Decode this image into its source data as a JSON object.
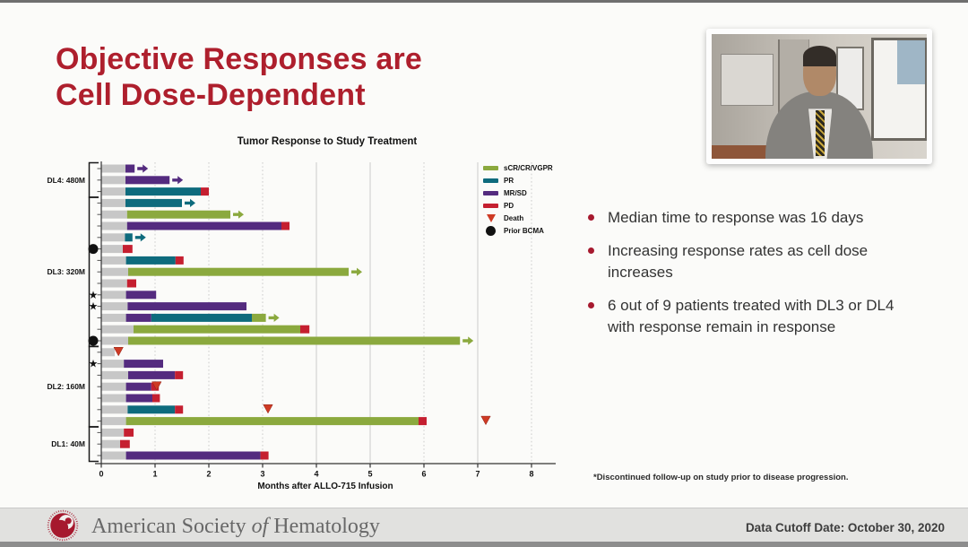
{
  "slide": {
    "title_line1": "Objective Responses are",
    "title_line2": "Cell Dose-Dependent",
    "bullets": [
      "Median time to response was 16 days",
      "Increasing response rates as cell dose increases",
      "6 out of 9 patients treated with DL3 or DL4 with response remain in response"
    ],
    "footnote": "*Discontinued follow-up on study prior to disease progression."
  },
  "footer": {
    "org_prefix": "American Society ",
    "org_italic": "of",
    "org_suffix": " Hematology",
    "data_cutoff": "Data Cutoff Date: October 30, 2020"
  },
  "colors": {
    "title_red": "#AE1F2D",
    "bullet_dot": "#A6192E"
  },
  "chart_data": {
    "type": "swimmer",
    "title": "Tumor Response to Study Treatment",
    "xlabel": "Months after ALLO-715 Infusion",
    "x_unit": "months",
    "xlim": [
      0,
      8
    ],
    "xticks": [
      0,
      1,
      2,
      3,
      4,
      5,
      6,
      7,
      8
    ],
    "series_colors": {
      "pre": "#C7C7C7",
      "scr": "#8BA93E",
      "pr": "#0E6B7D",
      "mrsd": "#542B7F",
      "pd": "#C51F30",
      "death": "#CE3A24",
      "marker": "#111111"
    },
    "legend": [
      {
        "key": "scr",
        "label": "sCR/CR/VGPR",
        "shape": "bar"
      },
      {
        "key": "pr",
        "label": "PR",
        "shape": "bar"
      },
      {
        "key": "mrsd",
        "label": "MR/SD",
        "shape": "bar"
      },
      {
        "key": "pd",
        "label": "PD",
        "shape": "bar"
      },
      {
        "key": "death",
        "label": "Death",
        "shape": "triangle"
      },
      {
        "key": "marker",
        "label": "Prior BCMA",
        "shape": "circle"
      }
    ],
    "groups": [
      {
        "label": "DL4: 480M",
        "rows": [
          {
            "segments": [
              [
                "pre",
                0,
                0.45
              ],
              [
                "mrsd",
                0.45,
                0.62
              ]
            ],
            "arrow": "mrsd"
          },
          {
            "segments": [
              [
                "pre",
                0,
                0.45
              ],
              [
                "mrsd",
                0.45,
                1.27
              ]
            ],
            "arrow": "mrsd"
          },
          {
            "segments": [
              [
                "pre",
                0,
                0.45
              ],
              [
                "pr",
                0.45,
                1.85
              ],
              [
                "pd",
                1.85,
                2.0
              ]
            ]
          }
        ]
      },
      {
        "label": "DL3: 320M",
        "rows": [
          {
            "segments": [
              [
                "pre",
                0,
                0.45
              ],
              [
                "pr",
                0.45,
                1.5
              ]
            ],
            "arrow": "pr"
          },
          {
            "segments": [
              [
                "pre",
                0,
                0.48
              ],
              [
                "scr",
                0.48,
                2.4
              ]
            ],
            "arrow": "scr"
          },
          {
            "segments": [
              [
                "pre",
                0,
                0.48
              ],
              [
                "mrsd",
                0.48,
                3.35
              ],
              [
                "pd",
                3.35,
                3.5
              ]
            ]
          },
          {
            "segments": [
              [
                "pre",
                0,
                0.44
              ],
              [
                "pr",
                0.44,
                0.58
              ]
            ],
            "arrow": "pr"
          },
          {
            "segments": [
              [
                "pre",
                0,
                0.4
              ],
              [
                "pd",
                0.4,
                0.58
              ]
            ],
            "marker": "circle"
          },
          {
            "segments": [
              [
                "pre",
                0,
                0.46
              ],
              [
                "pr",
                0.46,
                1.38
              ],
              [
                "pd",
                1.38,
                1.53
              ]
            ]
          },
          {
            "segments": [
              [
                "pre",
                0,
                0.5
              ],
              [
                "scr",
                0.5,
                4.6
              ]
            ],
            "arrow": "scr"
          },
          {
            "segments": [
              [
                "pre",
                0,
                0.48
              ],
              [
                "pd",
                0.48,
                0.65
              ]
            ]
          },
          {
            "segments": [
              [
                "pre",
                0,
                0.46
              ],
              [
                "mrsd",
                0.46,
                1.02
              ]
            ],
            "marker": "star"
          },
          {
            "segments": [
              [
                "pre",
                0,
                0.49
              ],
              [
                "mrsd",
                0.49,
                2.7
              ]
            ],
            "marker": "star"
          },
          {
            "segments": [
              [
                "pre",
                0,
                0.46
              ],
              [
                "mrsd",
                0.46,
                0.93
              ],
              [
                "pr",
                0.93,
                2.8
              ],
              [
                "scr",
                2.8,
                3.06
              ]
            ],
            "arrow": "scr"
          },
          {
            "segments": [
              [
                "pre",
                0,
                0.6
              ],
              [
                "scr",
                0.6,
                3.7
              ],
              [
                "pd",
                3.7,
                3.87
              ]
            ]
          },
          {
            "segments": [
              [
                "pre",
                0,
                0.5
              ],
              [
                "scr",
                0.5,
                6.67
              ]
            ],
            "arrow": "scr",
            "marker": "circle"
          }
        ]
      },
      {
        "label": "DL2: 160M",
        "rows": [
          {
            "segments": [
              [
                "pre",
                0,
                0.25
              ]
            ],
            "death": 0.32
          },
          {
            "segments": [
              [
                "pre",
                0,
                0.42
              ],
              [
                "mrsd",
                0.42,
                1.15
              ]
            ],
            "marker": "star"
          },
          {
            "segments": [
              [
                "pre",
                0,
                0.5
              ],
              [
                "mrsd",
                0.5,
                1.37
              ],
              [
                "pd",
                1.37,
                1.52
              ]
            ]
          },
          {
            "segments": [
              [
                "pre",
                0,
                0.46
              ],
              [
                "mrsd",
                0.46,
                0.93
              ],
              [
                "pd",
                0.93,
                1.07
              ]
            ],
            "death": 1.03
          },
          {
            "segments": [
              [
                "pre",
                0,
                0.46
              ],
              [
                "mrsd",
                0.46,
                0.95
              ],
              [
                "pd",
                0.95,
                1.09
              ]
            ]
          },
          {
            "segments": [
              [
                "pre",
                0,
                0.49
              ],
              [
                "pr",
                0.49,
                1.37
              ],
              [
                "pd",
                1.37,
                1.52
              ]
            ],
            "death": 3.1
          },
          {
            "segments": [
              [
                "pre",
                0,
                0.46
              ],
              [
                "scr",
                0.46,
                5.9
              ],
              [
                "pd",
                5.9,
                6.05
              ]
            ],
            "death": 7.15
          }
        ]
      },
      {
        "label": "DL1: 40M",
        "rows": [
          {
            "segments": [
              [
                "pre",
                0,
                0.42
              ],
              [
                "pd",
                0.42,
                0.6
              ]
            ]
          },
          {
            "segments": [
              [
                "pre",
                0,
                0.35
              ],
              [
                "pd",
                0.35,
                0.53
              ]
            ]
          },
          {
            "segments": [
              [
                "pre",
                0,
                0.46
              ],
              [
                "mrsd",
                0.46,
                2.96
              ],
              [
                "pd",
                2.96,
                3.11
              ]
            ]
          }
        ]
      }
    ]
  }
}
